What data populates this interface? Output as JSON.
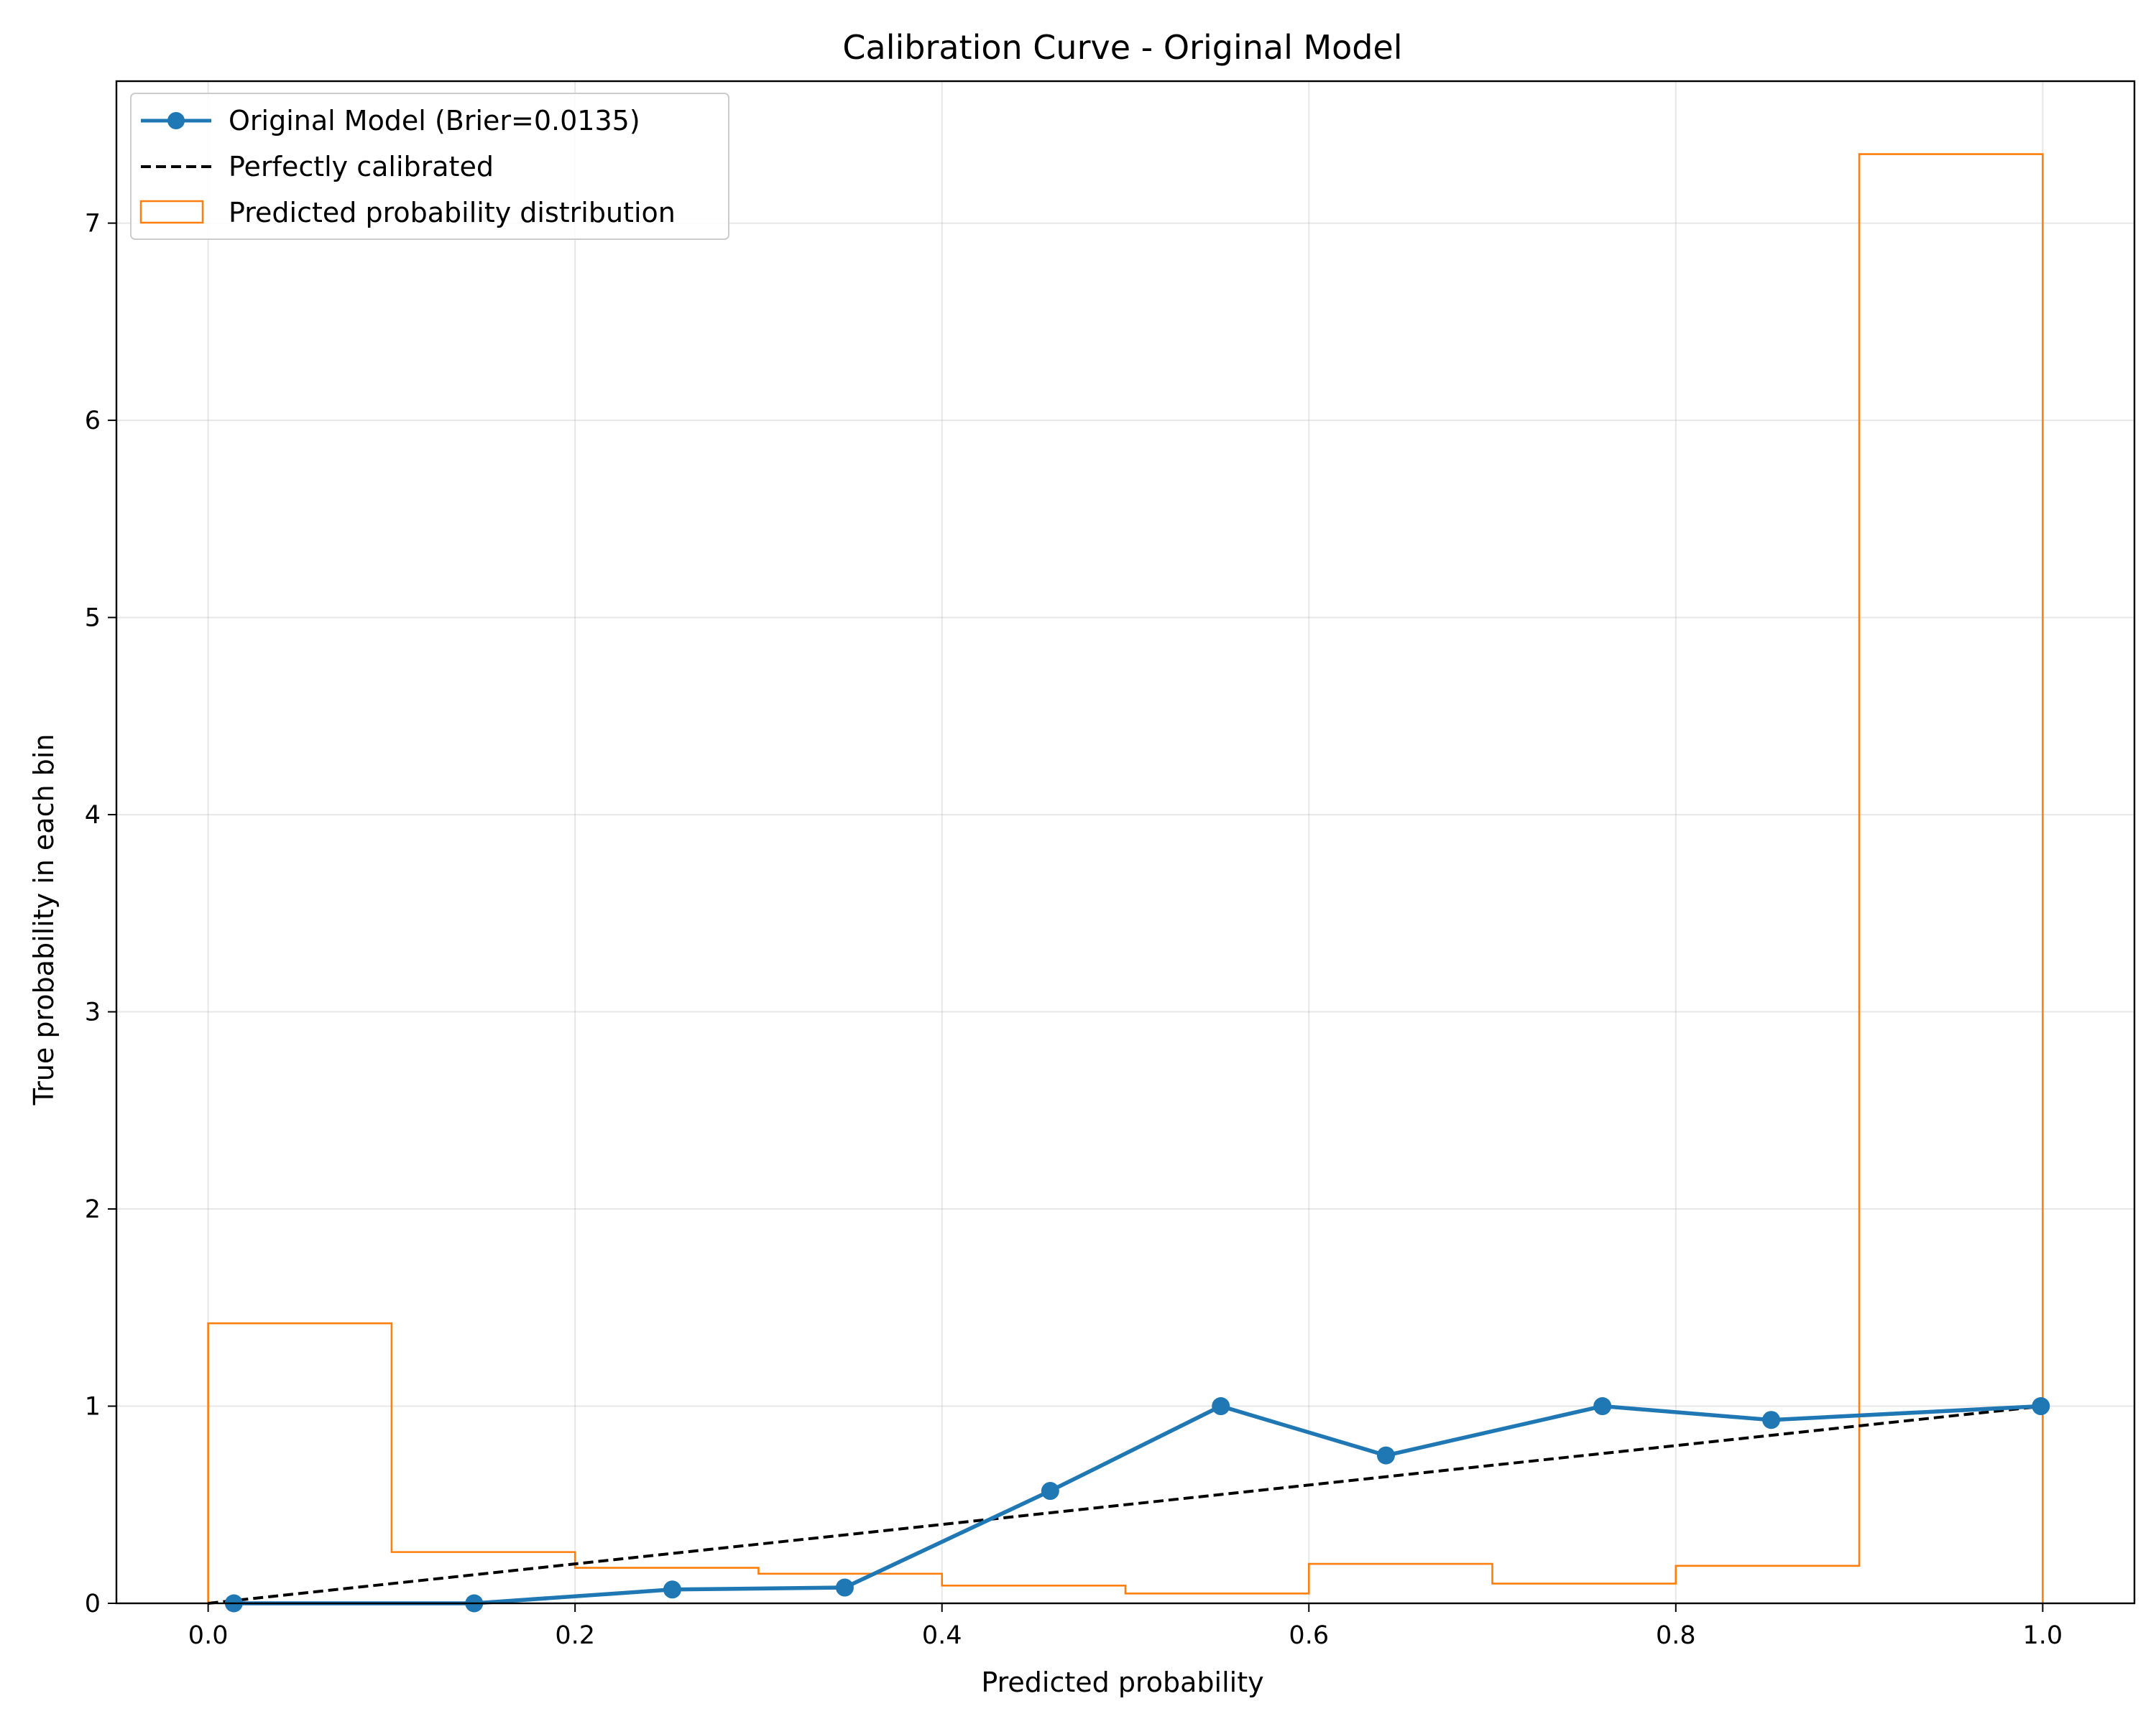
{
  "chart_data": {
    "type": "line",
    "title": "Calibration Curve - Original Model",
    "xlabel": "Predicted probability",
    "ylabel": "True probability in each bin",
    "xlim": [
      -0.05,
      1.05
    ],
    "ylim": [
      0,
      7.72
    ],
    "grid": true,
    "x_ticks": [
      0.0,
      0.2,
      0.4,
      0.6,
      0.8,
      1.0
    ],
    "x_tick_labels": [
      "0.0",
      "0.2",
      "0.4",
      "0.6",
      "0.8",
      "1.0"
    ],
    "y_ticks": [
      0,
      1,
      2,
      3,
      4,
      5,
      6,
      7
    ],
    "y_tick_labels": [
      "0",
      "1",
      "2",
      "3",
      "4",
      "5",
      "6",
      "7"
    ],
    "legend_position": "top-left",
    "series": [
      {
        "name": "Original Model (Brier=0.0135)",
        "kind": "line-marker",
        "color": "#1f77b4",
        "x": [
          0.014,
          0.145,
          0.253,
          0.347,
          0.459,
          0.552,
          0.642,
          0.76,
          0.852,
          0.999
        ],
        "y": [
          0.0,
          0.0,
          0.07,
          0.08,
          0.57,
          1.0,
          0.75,
          1.0,
          0.93,
          1.0
        ]
      },
      {
        "name": "Perfectly calibrated",
        "kind": "dashed-line",
        "color": "#000000",
        "x": [
          0,
          1
        ],
        "y": [
          0,
          1
        ]
      },
      {
        "name": "Predicted probability distribution",
        "kind": "step-histogram",
        "color": "#ff7f0e",
        "bin_edges": [
          0.0,
          0.1,
          0.2,
          0.3,
          0.4,
          0.5,
          0.6,
          0.7,
          0.8,
          0.9,
          1.0
        ],
        "values": [
          1.42,
          0.26,
          0.18,
          0.15,
          0.09,
          0.05,
          0.2,
          0.1,
          0.19,
          7.35
        ]
      }
    ]
  }
}
